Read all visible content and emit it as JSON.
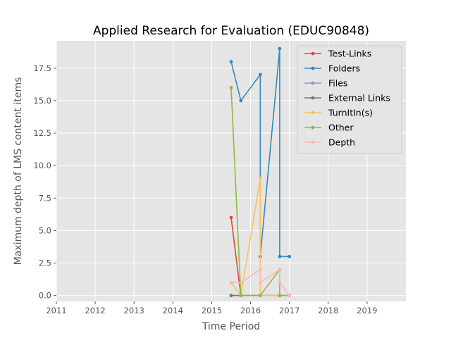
{
  "chart_data": {
    "type": "line",
    "title": "Applied Research for Evaluation (EDUC90848)",
    "xlabel": "Time Period",
    "ylabel": "Maximum depth of LMS content items",
    "xlim": [
      2011,
      2020
    ],
    "ylim": [
      -0.45,
      19.6
    ],
    "x_ticks": [
      "2011",
      "2012",
      "2013",
      "2014",
      "2015",
      "2016",
      "2017",
      "2018",
      "2019"
    ],
    "y_ticks": [
      "0.0",
      "2.5",
      "5.0",
      "7.5",
      "10.0",
      "12.5",
      "15.0",
      "17.5"
    ],
    "grid": true,
    "legend_position": "top-right",
    "series": [
      {
        "name": "Test-Links",
        "color": "#E24A33",
        "points": [
          [
            2015.5,
            6
          ],
          [
            2015.75,
            0
          ],
          [
            2016.25,
            0
          ],
          [
            2016.75,
            0
          ],
          [
            2017.0,
            0
          ]
        ]
      },
      {
        "name": "Folders",
        "color": "#348ABD",
        "points": [
          [
            2015.5,
            18
          ],
          [
            2015.75,
            15
          ],
          [
            2016.25,
            17
          ],
          [
            2016.25,
            3
          ],
          [
            2016.75,
            19
          ],
          [
            2016.75,
            3
          ],
          [
            2017.0,
            3
          ]
        ]
      },
      {
        "name": "Files",
        "color": "#988ED5",
        "points": [
          [
            2015.5,
            0
          ],
          [
            2015.75,
            0
          ],
          [
            2016.25,
            0
          ],
          [
            2016.75,
            0
          ],
          [
            2017.0,
            0
          ]
        ]
      },
      {
        "name": "External Links",
        "color": "#777777",
        "points": [
          [
            2015.5,
            0
          ],
          [
            2015.75,
            0
          ],
          [
            2016.25,
            0
          ],
          [
            2016.75,
            0
          ],
          [
            2017.0,
            0
          ]
        ]
      },
      {
        "name": "TurnItIn(s)",
        "color": "#FBC15E",
        "points": [
          [
            2015.5,
            1
          ],
          [
            2015.75,
            0
          ],
          [
            2016.25,
            9
          ],
          [
            2016.25,
            0
          ],
          [
            2016.75,
            0
          ],
          [
            2017.0,
            0
          ]
        ]
      },
      {
        "name": "Other",
        "color": "#8EBA42",
        "points": [
          [
            2015.5,
            16
          ],
          [
            2015.75,
            0
          ],
          [
            2016.25,
            0
          ],
          [
            2016.75,
            2
          ],
          [
            2016.75,
            0
          ],
          [
            2017.0,
            0
          ]
        ]
      },
      {
        "name": "Depth",
        "color": "#FFB5B8",
        "points": [
          [
            2015.5,
            1
          ],
          [
            2015.75,
            1
          ],
          [
            2016.25,
            2
          ],
          [
            2016.25,
            1
          ],
          [
            2016.75,
            2
          ],
          [
            2016.75,
            1
          ],
          [
            2017.0,
            0
          ]
        ]
      }
    ]
  }
}
